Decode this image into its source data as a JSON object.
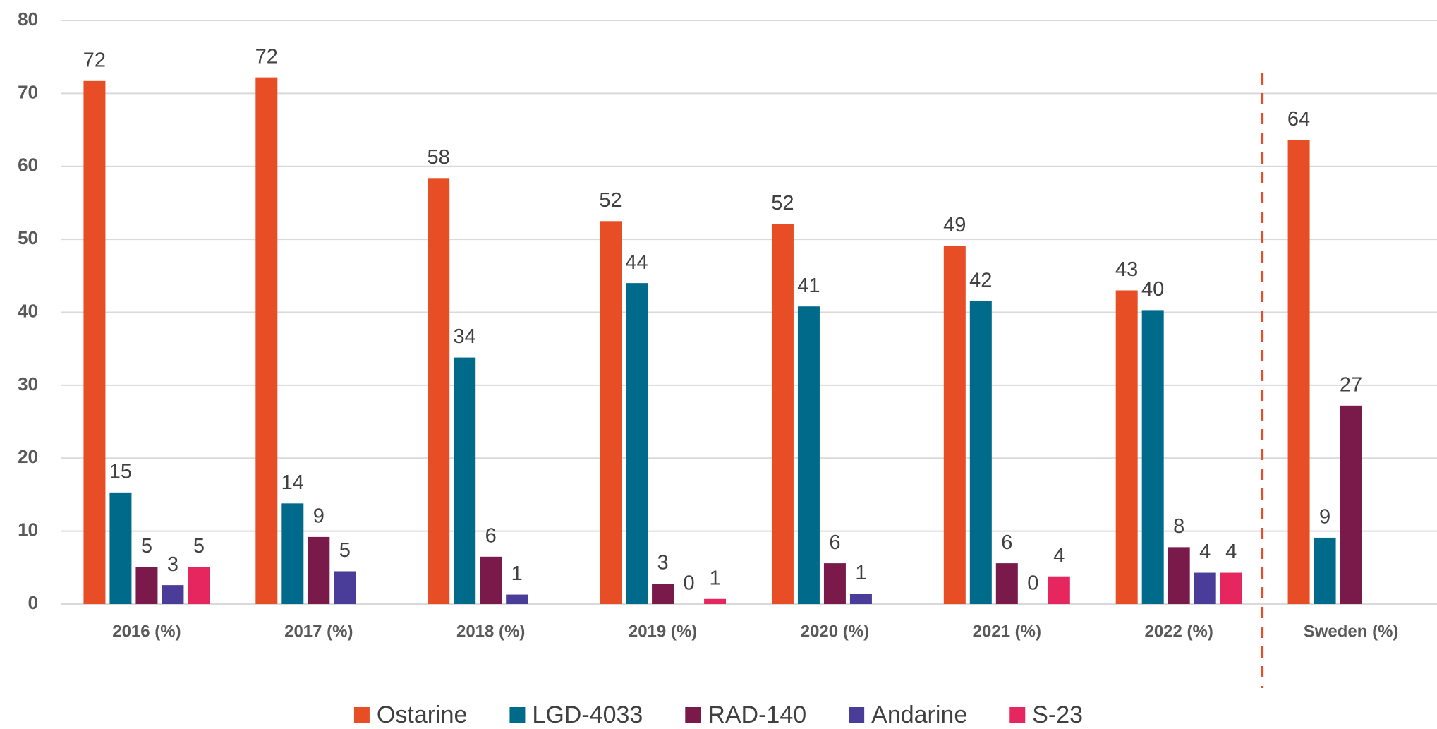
{
  "chart_data": {
    "type": "bar",
    "categories": [
      "2016 (%)",
      "2017 (%)",
      "2018 (%)",
      "2019 (%)",
      "2020 (%)",
      "2021 (%)",
      "2022 (%)",
      "Sweden (%)"
    ],
    "series": [
      {
        "name": "Ostarine",
        "color": "#e84e25",
        "values": [
          71.7,
          72.2,
          58.4,
          52.5,
          52.1,
          49.1,
          43,
          63.6
        ],
        "value_labels": [
          "72",
          "72",
          "58",
          "52",
          "52",
          "49",
          "43",
          "64"
        ]
      },
      {
        "name": "LGD-4033",
        "color": "#006a8a",
        "values": [
          15.3,
          13.8,
          33.8,
          44,
          40.8,
          41.5,
          40.3,
          9.1
        ],
        "value_labels": [
          "15",
          "14",
          "34",
          "44",
          "41",
          "42",
          "40",
          "9"
        ]
      },
      {
        "name": "RAD-140",
        "color": "#7a1a4a",
        "values": [
          5.1,
          9.2,
          6.5,
          2.8,
          5.6,
          5.6,
          7.8,
          27.2
        ],
        "value_labels": [
          "5",
          "9",
          "6",
          "3",
          "6",
          "6",
          "8",
          "27"
        ]
      },
      {
        "name": "Andarine",
        "color": "#4a3d99",
        "values": [
          2.6,
          4.5,
          1.3,
          0,
          1.4,
          0,
          4.3,
          null
        ],
        "value_labels": [
          "3",
          "5",
          "1",
          "0",
          "1",
          "0",
          "4",
          null
        ]
      },
      {
        "name": "S-23",
        "color": "#e6275f",
        "values": [
          5.1,
          null,
          null,
          0.7,
          null,
          3.8,
          4.3,
          null
        ],
        "value_labels": [
          "5",
          null,
          null,
          "1",
          null,
          "4",
          "4",
          null
        ]
      }
    ],
    "ylim": [
      0,
      80
    ],
    "yticks": [
      0,
      10,
      20,
      30,
      40,
      50,
      60,
      70,
      80
    ],
    "grid": true,
    "legend": "bottom"
  }
}
